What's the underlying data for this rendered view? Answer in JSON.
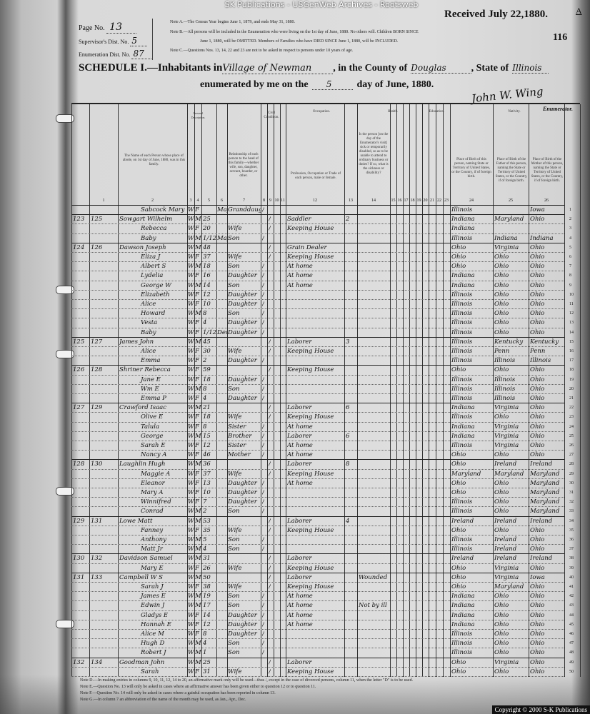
{
  "watermark": "SK Publications - USGenWeb Archives - Rootsweb",
  "header": {
    "page_label": "Page No.",
    "page_value": "13",
    "supervisor_label": "Supervisor's Dist. No.",
    "supervisor_value": "5",
    "enumeration_label": "Enumeration Dist. No.",
    "enumeration_value": "87",
    "note_a": "Note A.—The Census Year begins June 1, 1879, and ends May 31, 1880.",
    "note_b": "Note B.—All persons will be included in the Enumeration who were living on the 1st day of June, 1880. No others will. Children BORN SINCE",
    "note_b2": "June 1, 1880, will be OMITTED. Members of Families who have DIED SINCE June 1, 1880, will be INCLUDED.",
    "note_c": "Note C.—Questions Nos. 13, 14, 22 and 23 are not to be asked in respect to persons under 10 years of age.",
    "received": "Received July 22,1880.",
    "corner_letter": "A",
    "stamp_number": "116",
    "schedule_prefix": "SCHEDULE I.—Inhabitants in",
    "place": "Village of Newman",
    "county_label": ", in the County of",
    "county": "Douglas",
    "state_label": ", State of",
    "state": "Illinois",
    "enumerated_label": "enumerated by me on the",
    "day": "5",
    "date_suffix": "day of June, 1880.",
    "signature": "John W. Wing",
    "enumerator_label": "Enumerator."
  },
  "columns": {
    "personal": "Personal Description.",
    "civil": "Civil Condition.",
    "occupation": "Occupation.",
    "health": "Health.",
    "education": "Education.",
    "nativity": "Nativity.",
    "name": "The Name of each Person whose place of abode, on 1st day of June, 1880, was in this family.",
    "relationship": "Relationship of each person to the head of this family—whether wife, son, daughter, servant, boarder, or other.",
    "profession": "Profession, Occupation or Trade of each person, male or female.",
    "sickness": "Is the person [on the day of the Enumerator's visit] sick or temporarily disabled, so as to be unable to attend to ordinary business or duties? If so, what is the sickness or disability?",
    "birthplace": "Place of Birth of this person, naming State or Territory of United States, or the Country, if of foreign birth.",
    "father_birthplace": "Place of Birth of the Father of this person, naming the State or Territory of United States, or the Country, if of foreign birth.",
    "mother_birthplace": "Place of Birth of the Mother of this person, naming the State or Territory of United States, or the Country, if of foreign birth.",
    "numbers": [
      "1",
      "2",
      "3",
      "4",
      "5",
      "6",
      "7",
      "8",
      "9",
      "10",
      "11",
      "12",
      "13",
      "14",
      "15",
      "16",
      "17",
      "18",
      "19",
      "20",
      "21",
      "22",
      "23",
      "24",
      "25",
      "26"
    ]
  },
  "rows": [
    {
      "d": "",
      "f": "",
      "name": "Sabcock Mary",
      "c": "W",
      "s": "F",
      "a": "",
      "m": "May",
      "rel": "Granddaughter",
      "occ": "",
      "bp": "Illinois",
      "fbp": "",
      "mbp": "Iowa"
    },
    {
      "d": "123",
      "f": "125",
      "name": "Sowgart Wilhelm",
      "c": "W",
      "s": "M",
      "a": "25",
      "m": "",
      "rel": "",
      "occ": "Saddler",
      "mo": "2",
      "bp": "Indiana",
      "fbp": "Maryland",
      "mbp": "Ohio"
    },
    {
      "d": "",
      "f": "",
      "name": "Rebecca",
      "c": "W",
      "s": "F",
      "a": "20",
      "m": "",
      "rel": "Wife",
      "occ": "Keeping House",
      "bp": "Indiana",
      "fbp": "",
      "mbp": ""
    },
    {
      "d": "",
      "f": "",
      "name": "Baby",
      "c": "W",
      "s": "M",
      "a": "1/12",
      "m": "May",
      "rel": "Son",
      "occ": "",
      "bp": "Illinois",
      "fbp": "Indiana",
      "mbp": "Indiana"
    },
    {
      "d": "124",
      "f": "126",
      "name": "Dawson Joseph",
      "c": "W",
      "s": "M",
      "a": "48",
      "m": "",
      "rel": "",
      "occ": "Grain Dealer",
      "bp": "Ohio",
      "fbp": "Virginia",
      "mbp": "Ohio"
    },
    {
      "d": "",
      "f": "",
      "name": "Eliza J",
      "c": "W",
      "s": "F",
      "a": "37",
      "m": "",
      "rel": "Wife",
      "occ": "Keeping House",
      "bp": "Ohio",
      "fbp": "Ohio",
      "mbp": "Ohio"
    },
    {
      "d": "",
      "f": "",
      "name": "Albert S",
      "c": "W",
      "s": "M",
      "a": "18",
      "m": "",
      "rel": "Son",
      "occ": "At home",
      "bp": "Ohio",
      "fbp": "Ohio",
      "mbp": "Ohio"
    },
    {
      "d": "",
      "f": "",
      "name": "Lydelia",
      "c": "W",
      "s": "F",
      "a": "16",
      "m": "",
      "rel": "Daughter",
      "occ": "At home",
      "bp": "Indiana",
      "fbp": "Ohio",
      "mbp": "Ohio"
    },
    {
      "d": "",
      "f": "",
      "name": "George W",
      "c": "W",
      "s": "M",
      "a": "14",
      "m": "",
      "rel": "Son",
      "occ": "At home",
      "bp": "Indiana",
      "fbp": "Ohio",
      "mbp": "Ohio"
    },
    {
      "d": "",
      "f": "",
      "name": "Elizabeth",
      "c": "W",
      "s": "F",
      "a": "12",
      "m": "",
      "rel": "Daughter",
      "occ": "",
      "bp": "Illinois",
      "fbp": "Ohio",
      "mbp": "Ohio"
    },
    {
      "d": "",
      "f": "",
      "name": "Alice",
      "c": "W",
      "s": "F",
      "a": "10",
      "m": "",
      "rel": "Daughter",
      "occ": "",
      "bp": "Illinois",
      "fbp": "Ohio",
      "mbp": "Ohio"
    },
    {
      "d": "",
      "f": "",
      "name": "Howard",
      "c": "W",
      "s": "M",
      "a": "8",
      "m": "",
      "rel": "Son",
      "occ": "",
      "bp": "Illinois",
      "fbp": "Ohio",
      "mbp": "Ohio"
    },
    {
      "d": "",
      "f": "",
      "name": "Vesta",
      "c": "W",
      "s": "F",
      "a": "4",
      "m": "",
      "rel": "Daughter",
      "occ": "",
      "bp": "Illinois",
      "fbp": "Ohio",
      "mbp": "Ohio"
    },
    {
      "d": "",
      "f": "",
      "name": "Baby",
      "c": "W",
      "s": "F",
      "a": "1/12",
      "m": "Dec",
      "rel": "Daughter",
      "occ": "",
      "bp": "Illinois",
      "fbp": "Ohio",
      "mbp": "Ohio"
    },
    {
      "d": "125",
      "f": "127",
      "name": "James John",
      "c": "W",
      "s": "M",
      "a": "45",
      "m": "",
      "rel": "",
      "occ": "Laborer",
      "mo": "3",
      "bp": "Illinois",
      "fbp": "Kentucky",
      "mbp": "Kentucky"
    },
    {
      "d": "",
      "f": "",
      "name": "Alice",
      "c": "W",
      "s": "F",
      "a": "30",
      "m": "",
      "rel": "Wife",
      "occ": "Keeping House",
      "bp": "Illinois",
      "fbp": "Penn",
      "mbp": "Penn"
    },
    {
      "d": "",
      "f": "",
      "name": "Emma",
      "c": "W",
      "s": "F",
      "a": "2",
      "m": "",
      "rel": "Daughter",
      "occ": "",
      "bp": "Illinois",
      "fbp": "Illinois",
      "mbp": "Illinois"
    },
    {
      "d": "126",
      "f": "128",
      "name": "Shriner Rebecca",
      "c": "W",
      "s": "F",
      "a": "59",
      "m": "",
      "rel": "",
      "occ": "Keeping House",
      "bp": "Ohio",
      "fbp": "Ohio",
      "mbp": "Ohio"
    },
    {
      "d": "",
      "f": "",
      "name": "Jane E",
      "c": "W",
      "s": "F",
      "a": "18",
      "m": "",
      "rel": "Daughter",
      "occ": "",
      "bp": "Illinois",
      "fbp": "Illinois",
      "mbp": "Ohio"
    },
    {
      "d": "",
      "f": "",
      "name": "Wm E",
      "c": "W",
      "s": "M",
      "a": "8",
      "m": "",
      "rel": "Son",
      "occ": "",
      "bp": "Illinois",
      "fbp": "Illinois",
      "mbp": "Ohio"
    },
    {
      "d": "",
      "f": "",
      "name": "Emma P",
      "c": "W",
      "s": "F",
      "a": "4",
      "m": "",
      "rel": "Daughter",
      "occ": "",
      "bp": "Illinois",
      "fbp": "Illinois",
      "mbp": "Ohio"
    },
    {
      "d": "127",
      "f": "129",
      "name": "Crawford Isaac",
      "c": "W",
      "s": "M",
      "a": "21",
      "m": "",
      "rel": "",
      "occ": "Laborer",
      "mo": "6",
      "bp": "Indiana",
      "fbp": "Virginia",
      "mbp": "Ohio"
    },
    {
      "d": "",
      "f": "",
      "name": "Olive E",
      "c": "W",
      "s": "F",
      "a": "18",
      "m": "",
      "rel": "Wife",
      "occ": "Keeping House",
      "bp": "Illinois",
      "fbp": "Ohio",
      "mbp": "Ohio"
    },
    {
      "d": "",
      "f": "",
      "name": "Talula",
      "c": "W",
      "s": "F",
      "a": "8",
      "m": "",
      "rel": "Sister",
      "occ": "At home",
      "bp": "Indiana",
      "fbp": "Virginia",
      "mbp": "Ohio"
    },
    {
      "d": "",
      "f": "",
      "name": "George",
      "c": "W",
      "s": "M",
      "a": "15",
      "m": "",
      "rel": "Brother",
      "occ": "Laborer",
      "mo": "6",
      "bp": "Indiana",
      "fbp": "Virginia",
      "mbp": "Ohio"
    },
    {
      "d": "",
      "f": "",
      "name": "Sarah E",
      "c": "W",
      "s": "F",
      "a": "12",
      "m": "",
      "rel": "Sister",
      "occ": "At home",
      "bp": "Illinois",
      "fbp": "Virginia",
      "mbp": "Ohio"
    },
    {
      "d": "",
      "f": "",
      "name": "Nancy A",
      "c": "W",
      "s": "F",
      "a": "46",
      "m": "",
      "rel": "Mother",
      "occ": "At home",
      "bp": "Ohio",
      "fbp": "Ohio",
      "mbp": "Ohio"
    },
    {
      "d": "128",
      "f": "130",
      "name": "Laughlin Hugh",
      "c": "W",
      "s": "M",
      "a": "36",
      "m": "",
      "rel": "",
      "occ": "Laborer",
      "mo": "8",
      "bp": "Ohio",
      "fbp": "Ireland",
      "mbp": "Ireland"
    },
    {
      "d": "",
      "f": "",
      "name": "Maggie A",
      "c": "W",
      "s": "F",
      "a": "37",
      "m": "",
      "rel": "Wife",
      "occ": "Keeping House",
      "bp": "Maryland",
      "fbp": "Maryland",
      "mbp": "Maryland"
    },
    {
      "d": "",
      "f": "",
      "name": "Eleanor",
      "c": "W",
      "s": "F",
      "a": "13",
      "m": "",
      "rel": "Daughter",
      "occ": "At home",
      "bp": "Ohio",
      "fbp": "Ohio",
      "mbp": "Maryland"
    },
    {
      "d": "",
      "f": "",
      "name": "Mary A",
      "c": "W",
      "s": "F",
      "a": "10",
      "m": "",
      "rel": "Daughter",
      "occ": "",
      "bp": "Ohio",
      "fbp": "Ohio",
      "mbp": "Maryland"
    },
    {
      "d": "",
      "f": "",
      "name": "Winnifred",
      "c": "W",
      "s": "F",
      "a": "7",
      "m": "",
      "rel": "Daughter",
      "occ": "",
      "bp": "Illinois",
      "fbp": "Ohio",
      "mbp": "Maryland"
    },
    {
      "d": "",
      "f": "",
      "name": "Conrad",
      "c": "W",
      "s": "M",
      "a": "2",
      "m": "",
      "rel": "Son",
      "occ": "",
      "bp": "Illinois",
      "fbp": "Ohio",
      "mbp": "Maryland"
    },
    {
      "d": "129",
      "f": "131",
      "name": "Lowe Matt",
      "c": "W",
      "s": "M",
      "a": "53",
      "m": "",
      "rel": "",
      "occ": "Laborer",
      "mo": "4",
      "bp": "Ireland",
      "fbp": "Ireland",
      "mbp": "Ireland"
    },
    {
      "d": "",
      "f": "",
      "name": "Fanney",
      "c": "W",
      "s": "F",
      "a": "35",
      "m": "",
      "rel": "Wife",
      "occ": "Keeping House",
      "bp": "Ohio",
      "fbp": "Ohio",
      "mbp": "Ohio"
    },
    {
      "d": "",
      "f": "",
      "name": "Anthony",
      "c": "W",
      "s": "M",
      "a": "5",
      "m": "",
      "rel": "Son",
      "occ": "",
      "bp": "Illinois",
      "fbp": "Ireland",
      "mbp": "Ohio"
    },
    {
      "d": "",
      "f": "",
      "name": "Matt Jr",
      "c": "W",
      "s": "M",
      "a": "4",
      "m": "",
      "rel": "Son",
      "occ": "",
      "bp": "Illinois",
      "fbp": "Ireland",
      "mbp": "Ohio"
    },
    {
      "d": "130",
      "f": "132",
      "name": "Davidson Samuel",
      "c": "W",
      "s": "M",
      "a": "31",
      "m": "",
      "rel": "",
      "occ": "Laborer",
      "bp": "Ireland",
      "fbp": "Ireland",
      "mbp": "Ireland"
    },
    {
      "d": "",
      "f": "",
      "name": "Mary E",
      "c": "W",
      "s": "F",
      "a": "26",
      "m": "",
      "rel": "Wife",
      "occ": "Keeping House",
      "bp": "Ohio",
      "fbp": "Virginia",
      "mbp": "Ohio"
    },
    {
      "d": "131",
      "f": "133",
      "name": "Campbell W S",
      "c": "W",
      "s": "M",
      "a": "50",
      "m": "",
      "rel": "",
      "occ": "Laborer",
      "sick": "Wounded",
      "bp": "Ohio",
      "fbp": "Virginia",
      "mbp": "Iowa"
    },
    {
      "d": "",
      "f": "",
      "name": "Sarah J",
      "c": "W",
      "s": "F",
      "a": "38",
      "m": "",
      "rel": "Wife",
      "occ": "Keeping House",
      "bp": "Ohio",
      "fbp": "Maryland",
      "mbp": "Ohio"
    },
    {
      "d": "",
      "f": "",
      "name": "James E",
      "c": "W",
      "s": "M",
      "a": "19",
      "m": "",
      "rel": "Son",
      "occ": "At home",
      "bp": "Indiana",
      "fbp": "Ohio",
      "mbp": "Ohio"
    },
    {
      "d": "",
      "f": "",
      "name": "Edwin J",
      "c": "W",
      "s": "M",
      "a": "17",
      "m": "",
      "rel": "Son",
      "occ": "At home",
      "sick": "Not by ill",
      "bp": "Indiana",
      "fbp": "Ohio",
      "mbp": "Ohio"
    },
    {
      "d": "",
      "f": "",
      "name": "Gladys E",
      "c": "W",
      "s": "F",
      "a": "14",
      "m": "",
      "rel": "Daughter",
      "occ": "At home",
      "bp": "Indiana",
      "fbp": "Ohio",
      "mbp": "Ohio"
    },
    {
      "d": "",
      "f": "",
      "name": "Hannah E",
      "c": "W",
      "s": "F",
      "a": "12",
      "m": "",
      "rel": "Daughter",
      "occ": "At home",
      "bp": "Indiana",
      "fbp": "Ohio",
      "mbp": "Ohio"
    },
    {
      "d": "",
      "f": "",
      "name": "Alice M",
      "c": "W",
      "s": "F",
      "a": "8",
      "m": "",
      "rel": "Daughter",
      "occ": "",
      "bp": "Illinois",
      "fbp": "Ohio",
      "mbp": "Ohio"
    },
    {
      "d": "",
      "f": "",
      "name": "Hugh D",
      "c": "W",
      "s": "M",
      "a": "4",
      "m": "",
      "rel": "Son",
      "occ": "",
      "bp": "Illinois",
      "fbp": "Ohio",
      "mbp": "Ohio"
    },
    {
      "d": "",
      "f": "",
      "name": "Robert J",
      "c": "W",
      "s": "M",
      "a": "1",
      "m": "",
      "rel": "Son",
      "occ": "",
      "bp": "Illinois",
      "fbp": "Ohio",
      "mbp": "Ohio"
    },
    {
      "d": "132",
      "f": "134",
      "name": "Goodman John",
      "c": "W",
      "s": "M",
      "a": "25",
      "m": "",
      "rel": "",
      "occ": "Laborer",
      "bp": "Ohio",
      "fbp": "Virginia",
      "mbp": "Ohio"
    },
    {
      "d": "",
      "f": "",
      "name": "Sarah",
      "c": "W",
      "s": "F",
      "a": "31",
      "m": "",
      "rel": "Wife",
      "occ": "Keeping House",
      "bp": "Ohio",
      "fbp": "Ohio",
      "mbp": "Ohio"
    }
  ],
  "footer_notes": [
    "Note D.—In making entries in columns 9, 10, 11, 12, 14 to 20, an affirmative mark only will be used—thus /, except in the case of divorced persons, column 11, when the letter \"D\" is to be used.",
    "Note E.—Question No. 13 will only be asked in cases where an affirmative answer has been given either to question 12 or to question 11.",
    "Note F.—Question No. 14 will only be asked in cases where a gainful occupation has been reported in column 13.",
    "Note G.—In column 7 an abbreviation of the name of the month may be used, as Jan., Apr., Dec."
  ],
  "copyright": "Copyright © 2000 S-K Publications"
}
